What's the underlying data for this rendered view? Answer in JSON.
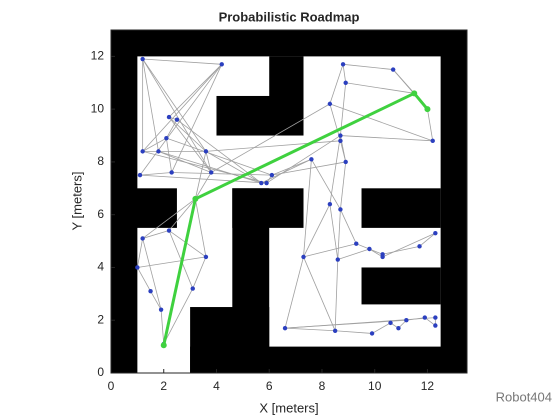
{
  "chart_data": {
    "type": "roadmap",
    "title": "Probabilistic Roadmap",
    "x_label": "X [meters]",
    "y_label": "Y [meters]",
    "watermark": "Robot404",
    "xlim": [
      0,
      13.5
    ],
    "ylim": [
      0,
      13
    ],
    "xticks": [
      0,
      2,
      4,
      6,
      8,
      10,
      12
    ],
    "yticks": [
      0,
      2,
      4,
      6,
      8,
      10,
      12
    ],
    "obstacles": {
      "color": "#000000",
      "rects": [
        [
          0,
          0,
          1,
          13
        ],
        [
          12.5,
          0,
          13.5,
          13
        ],
        [
          0,
          12,
          13.5,
          13
        ],
        [
          3,
          0,
          13.5,
          1
        ],
        [
          3,
          0,
          6,
          2.5
        ],
        [
          4.6,
          1,
          6,
          7
        ],
        [
          4.6,
          5.5,
          7.3,
          7
        ],
        [
          6,
          10,
          7.3,
          12
        ],
        [
          4,
          9,
          7.3,
          10.5
        ],
        [
          0,
          5.5,
          2.5,
          7
        ],
        [
          9.5,
          5.5,
          12.5,
          7
        ],
        [
          9.5,
          2.6,
          12.5,
          4
        ]
      ]
    },
    "nodes": {
      "color": "#2b3fbf",
      "x": [
        1.2,
        4.2,
        2.2,
        2.5,
        1.2,
        2.1,
        1.8,
        1.1,
        2.3,
        3.6,
        3.8,
        5.7,
        5.9,
        6.1,
        3.2,
        1.2,
        2.2,
        1,
        1.5,
        3.6,
        3.1,
        1.9,
        2,
        8.8,
        10.7,
        8.9,
        8.3,
        11.5,
        12,
        12.2,
        8.7,
        8.7,
        7.6,
        8.9,
        8.3,
        8.7,
        7.3,
        8.6,
        9.3,
        9.8,
        10.3,
        10.3,
        11.7,
        12.3,
        6.6,
        8.5,
        9.9,
        10.6,
        10.9,
        11.2,
        11.9,
        12.3,
        12.3
      ],
      "y": [
        11.9,
        11.7,
        9.7,
        9.6,
        8.4,
        8.9,
        8.4,
        7.5,
        7.6,
        8.4,
        7.6,
        7.2,
        7.2,
        7.5,
        6.6,
        5.1,
        5.4,
        4,
        3.1,
        4.4,
        3.2,
        2.4,
        1.1,
        11.7,
        11.5,
        11,
        10.2,
        10.6,
        10,
        8.8,
        9,
        8.8,
        8.1,
        8,
        6.4,
        6.2,
        4.4,
        4.3,
        4.9,
        4.7,
        4.5,
        4.4,
        4.8,
        5.3,
        1.7,
        1.6,
        1.5,
        1.9,
        1.7,
        2,
        2.1,
        1.8,
        2.1
      ]
    },
    "edges": {
      "color": "#a0a0a0",
      "pairs": [
        [
          0,
          1
        ],
        [
          0,
          4
        ],
        [
          0,
          6
        ],
        [
          0,
          9
        ],
        [
          0,
          10
        ],
        [
          1,
          2
        ],
        [
          1,
          4
        ],
        [
          1,
          7
        ],
        [
          1,
          8
        ],
        [
          2,
          3
        ],
        [
          2,
          9
        ],
        [
          2,
          10
        ],
        [
          3,
          5
        ],
        [
          3,
          11
        ],
        [
          4,
          5
        ],
        [
          4,
          9
        ],
        [
          4,
          12
        ],
        [
          5,
          8
        ],
        [
          5,
          13
        ],
        [
          6,
          10
        ],
        [
          6,
          11
        ],
        [
          7,
          8
        ],
        [
          7,
          12
        ],
        [
          8,
          13
        ],
        [
          9,
          10
        ],
        [
          9,
          11
        ],
        [
          9,
          14
        ],
        [
          10,
          14
        ],
        [
          11,
          12
        ],
        [
          12,
          13
        ],
        [
          11,
          32
        ],
        [
          12,
          30
        ],
        [
          13,
          33
        ],
        [
          13,
          32
        ],
        [
          9,
          31
        ],
        [
          10,
          26
        ],
        [
          14,
          15
        ],
        [
          14,
          16
        ],
        [
          14,
          19
        ],
        [
          15,
          16
        ],
        [
          15,
          17
        ],
        [
          16,
          20
        ],
        [
          17,
          18
        ],
        [
          17,
          19
        ],
        [
          18,
          21
        ],
        [
          19,
          20
        ],
        [
          20,
          22
        ],
        [
          21,
          22
        ],
        [
          15,
          21
        ],
        [
          16,
          19
        ],
        [
          23,
          24
        ],
        [
          23,
          25
        ],
        [
          23,
          26
        ],
        [
          24,
          27
        ],
        [
          24,
          28
        ],
        [
          25,
          30
        ],
        [
          25,
          27
        ],
        [
          26,
          29
        ],
        [
          26,
          31
        ],
        [
          27,
          28
        ],
        [
          28,
          29
        ],
        [
          29,
          30
        ],
        [
          30,
          33
        ],
        [
          31,
          33
        ],
        [
          32,
          35
        ],
        [
          30,
          34
        ],
        [
          33,
          35
        ],
        [
          34,
          36
        ],
        [
          35,
          37
        ],
        [
          36,
          38
        ],
        [
          37,
          39
        ],
        [
          38,
          40
        ],
        [
          39,
          41
        ],
        [
          40,
          42
        ],
        [
          41,
          43
        ],
        [
          42,
          43
        ],
        [
          36,
          44
        ],
        [
          37,
          45
        ],
        [
          44,
          45
        ],
        [
          45,
          46
        ],
        [
          46,
          47
        ],
        [
          47,
          48
        ],
        [
          48,
          49
        ],
        [
          49,
          50
        ],
        [
          50,
          51
        ],
        [
          51,
          52
        ],
        [
          44,
          49
        ],
        [
          44,
          52
        ],
        [
          36,
          45
        ],
        [
          34,
          37
        ],
        [
          32,
          36
        ],
        [
          35,
          38
        ]
      ]
    },
    "path": {
      "color": "#3fd13f",
      "x": [
        2,
        3.2,
        11.5,
        12
      ],
      "y": [
        1.05,
        6.6,
        10.6,
        10
      ]
    }
  }
}
